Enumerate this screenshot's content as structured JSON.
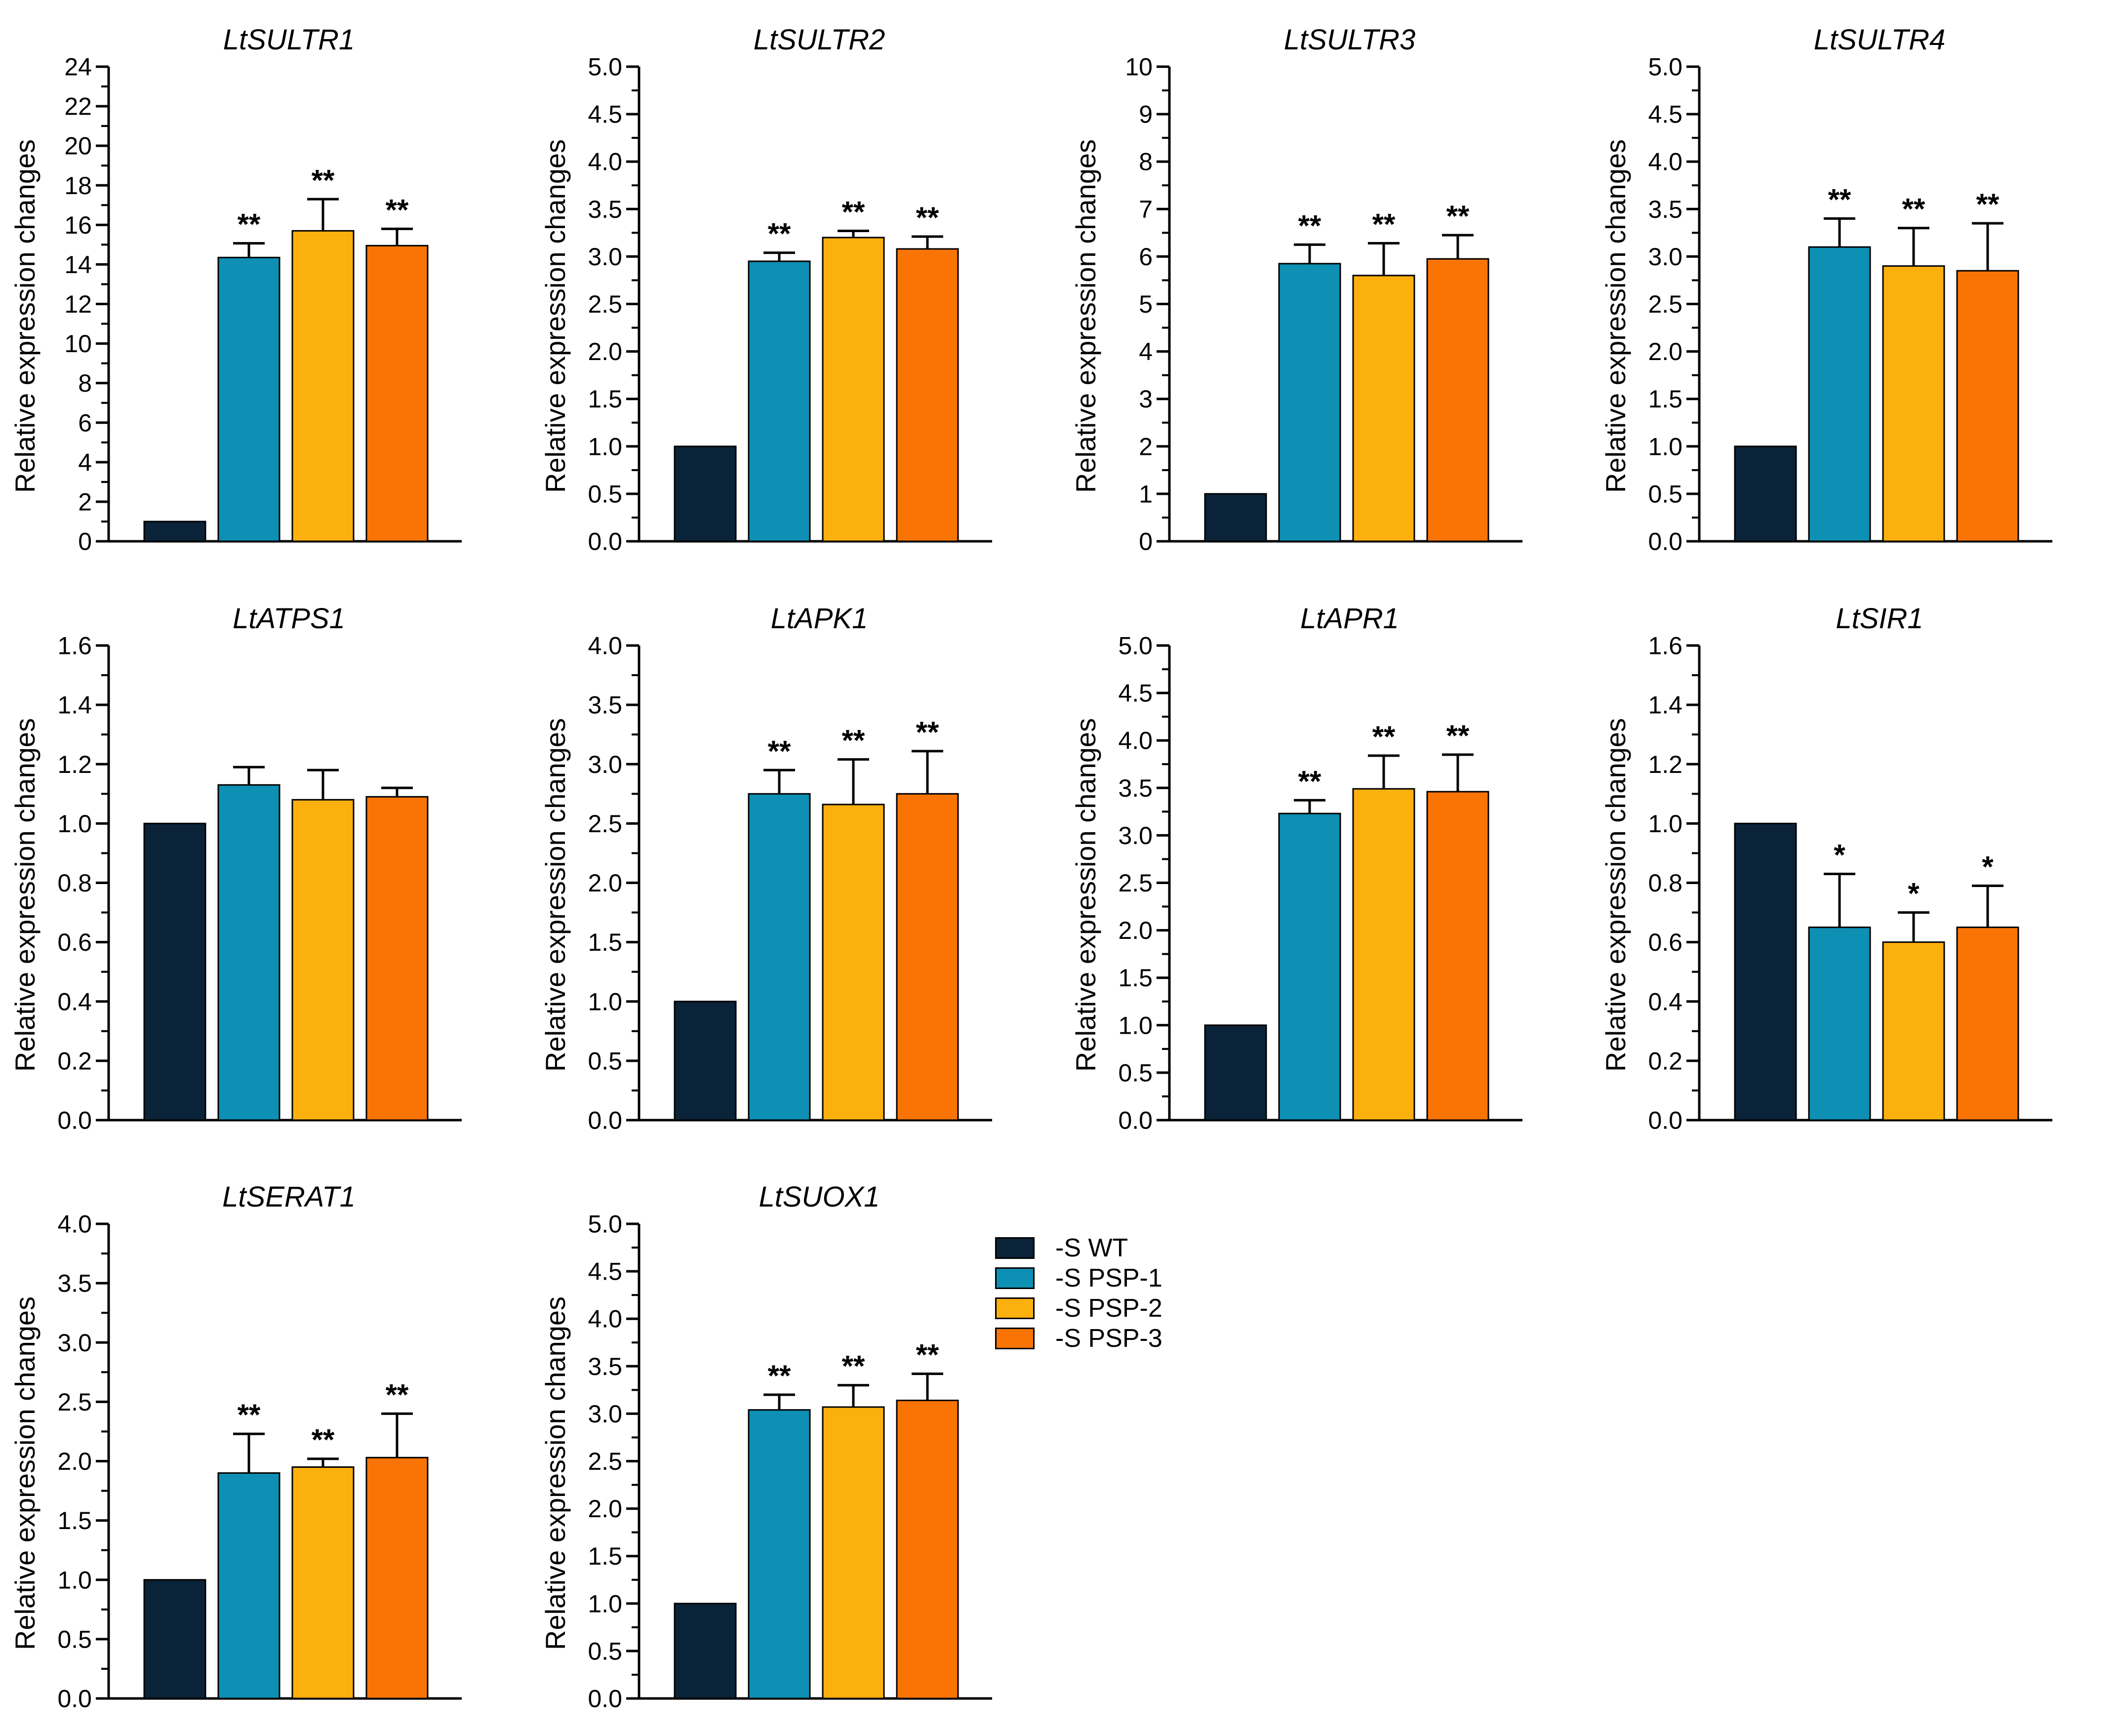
{
  "figure": {
    "y_axis_label": "Relative expression changes",
    "categories": [
      "-S WT",
      "-S PSP-1",
      "-S PSP-2",
      "-S PSP-3"
    ],
    "series_colors": [
      "#0a2338",
      "#0d90b3",
      "#fcb00d",
      "#fa7405"
    ],
    "axis_color": "#000000",
    "background_color": "#ffffff",
    "significance_note_symbols": [
      "*",
      "**"
    ]
  },
  "legend": {
    "position": "right-of-last-chart",
    "items": [
      {
        "label": "-S WT",
        "color": "#0a2338"
      },
      {
        "label": "-S PSP-1",
        "color": "#0d90b3"
      },
      {
        "label": "-S PSP-2",
        "color": "#fcb00d"
      },
      {
        "label": "-S PSP-3",
        "color": "#fa7405"
      }
    ]
  },
  "chart_data": [
    {
      "type": "bar",
      "title": "LtSULTR1",
      "ylabel": "Relative expression changes",
      "ylim": [
        0,
        24
      ],
      "ytick_step": 2,
      "ytick_minor_step": 1,
      "ytick_decimals": 0,
      "categories": [
        "-S WT",
        "-S PSP-1",
        "-S PSP-2",
        "-S PSP-3"
      ],
      "values": [
        1.0,
        14.35,
        15.7,
        14.95
      ],
      "errors_plus": [
        0,
        0.72,
        1.6,
        0.85
      ],
      "significance": [
        "",
        "**",
        "**",
        "**"
      ],
      "grid": {
        "row": 0,
        "col": 0
      },
      "gridlines": false
    },
    {
      "type": "bar",
      "title": "LtSULTR2",
      "ylabel": "Relative expression changes",
      "ylim": [
        0,
        5.0
      ],
      "ytick_step": 0.5,
      "ytick_minor_step": 0.25,
      "ytick_decimals": 1,
      "categories": [
        "-S WT",
        "-S PSP-1",
        "-S PSP-2",
        "-S PSP-3"
      ],
      "values": [
        1.0,
        2.95,
        3.2,
        3.08
      ],
      "errors_plus": [
        0,
        0.09,
        0.07,
        0.13
      ],
      "significance": [
        "",
        "**",
        "**",
        "**"
      ],
      "grid": {
        "row": 0,
        "col": 1
      },
      "gridlines": false
    },
    {
      "type": "bar",
      "title": "LtSULTR3",
      "ylabel": "Relative expression changes",
      "ylim": [
        0,
        10
      ],
      "ytick_step": 1,
      "ytick_minor_step": 0.5,
      "ytick_decimals": 0,
      "categories": [
        "-S WT",
        "-S PSP-1",
        "-S PSP-2",
        "-S PSP-3"
      ],
      "values": [
        1.0,
        5.85,
        5.6,
        5.95
      ],
      "errors_plus": [
        0,
        0.4,
        0.68,
        0.5
      ],
      "significance": [
        "",
        "**",
        "**",
        "**"
      ],
      "grid": {
        "row": 0,
        "col": 2
      },
      "gridlines": false
    },
    {
      "type": "bar",
      "title": "LtSULTR4",
      "ylabel": "Relative expression changes",
      "ylim": [
        0,
        5.0
      ],
      "ytick_step": 0.5,
      "ytick_minor_step": 0.25,
      "ytick_decimals": 1,
      "categories": [
        "-S WT",
        "-S PSP-1",
        "-S PSP-2",
        "-S PSP-3"
      ],
      "values": [
        1.0,
        3.1,
        2.9,
        2.85
      ],
      "errors_plus": [
        0,
        0.3,
        0.4,
        0.5
      ],
      "significance": [
        "",
        "**",
        "**",
        "**"
      ],
      "grid": {
        "row": 0,
        "col": 3
      },
      "gridlines": false
    },
    {
      "type": "bar",
      "title": "LtATPS1",
      "ylabel": "Relative expression changes",
      "ylim": [
        0,
        1.6
      ],
      "ytick_step": 0.2,
      "ytick_minor_step": 0.1,
      "ytick_decimals": 1,
      "categories": [
        "-S WT",
        "-S PSP-1",
        "-S PSP-2",
        "-S PSP-3"
      ],
      "values": [
        1.0,
        1.13,
        1.08,
        1.09
      ],
      "errors_plus": [
        0,
        0.06,
        0.1,
        0.03
      ],
      "significance": [
        "",
        "",
        "",
        ""
      ],
      "grid": {
        "row": 1,
        "col": 0
      },
      "gridlines": false
    },
    {
      "type": "bar",
      "title": "LtAPK1",
      "ylabel": "Relative expression changes",
      "ylim": [
        0,
        4.0
      ],
      "ytick_step": 0.5,
      "ytick_minor_step": 0.25,
      "ytick_decimals": 1,
      "categories": [
        "-S WT",
        "-S PSP-1",
        "-S PSP-2",
        "-S PSP-3"
      ],
      "values": [
        1.0,
        2.75,
        2.66,
        2.75
      ],
      "errors_plus": [
        0,
        0.2,
        0.38,
        0.36
      ],
      "significance": [
        "",
        "**",
        "**",
        "**"
      ],
      "grid": {
        "row": 1,
        "col": 1
      },
      "gridlines": false
    },
    {
      "type": "bar",
      "title": "LtAPR1",
      "ylabel": "Relative expression changes",
      "ylim": [
        0,
        5.0
      ],
      "ytick_step": 0.5,
      "ytick_minor_step": 0.25,
      "ytick_decimals": 1,
      "categories": [
        "-S WT",
        "-S PSP-1",
        "-S PSP-2",
        "-S PSP-3"
      ],
      "values": [
        1.0,
        3.23,
        3.49,
        3.46
      ],
      "errors_plus": [
        0,
        0.14,
        0.35,
        0.39
      ],
      "significance": [
        "",
        "**",
        "**",
        "**"
      ],
      "grid": {
        "row": 1,
        "col": 2
      },
      "gridlines": false
    },
    {
      "type": "bar",
      "title": "LtSIR1",
      "ylabel": "Relative expression changes",
      "ylim": [
        0,
        1.6
      ],
      "ytick_step": 0.2,
      "ytick_minor_step": 0.1,
      "ytick_decimals": 1,
      "categories": [
        "-S WT",
        "-S PSP-1",
        "-S PSP-2",
        "-S PSP-3"
      ],
      "values": [
        1.0,
        0.65,
        0.6,
        0.65
      ],
      "errors_plus": [
        0,
        0.18,
        0.1,
        0.14
      ],
      "significance": [
        "",
        "*",
        "*",
        "*"
      ],
      "grid": {
        "row": 1,
        "col": 3
      },
      "gridlines": false
    },
    {
      "type": "bar",
      "title": "LtSERAT1",
      "ylabel": "Relative expression changes",
      "ylim": [
        0,
        4.0
      ],
      "ytick_step": 0.5,
      "ytick_minor_step": 0.25,
      "ytick_decimals": 1,
      "categories": [
        "-S WT",
        "-S PSP-1",
        "-S PSP-2",
        "-S PSP-3"
      ],
      "values": [
        1.0,
        1.9,
        1.95,
        2.03
      ],
      "errors_plus": [
        0,
        0.33,
        0.07,
        0.37
      ],
      "significance": [
        "",
        "**",
        "**",
        "**"
      ],
      "grid": {
        "row": 2,
        "col": 0
      },
      "gridlines": false
    },
    {
      "type": "bar",
      "title": "LtSUOX1",
      "ylabel": "Relative expression changes",
      "ylim": [
        0,
        5.0
      ],
      "ytick_step": 0.5,
      "ytick_minor_step": 0.25,
      "ytick_decimals": 1,
      "categories": [
        "-S WT",
        "-S PSP-1",
        "-S PSP-2",
        "-S PSP-3"
      ],
      "values": [
        1.0,
        3.04,
        3.07,
        3.14
      ],
      "errors_plus": [
        0,
        0.16,
        0.23,
        0.28
      ],
      "significance": [
        "",
        "**",
        "**",
        "**"
      ],
      "grid": {
        "row": 2,
        "col": 1
      },
      "gridlines": false
    }
  ]
}
